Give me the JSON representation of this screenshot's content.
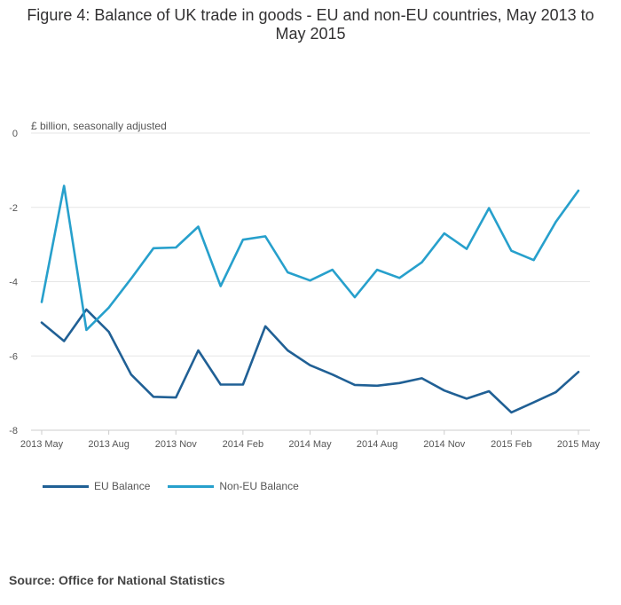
{
  "title": "Figure 4: Balance of UK trade in goods - EU and non-EU countries, May 2013 to May 2015",
  "source": "Source: Office for National Statistics",
  "colors": {
    "eu": "#206095",
    "non_eu": "#27a0cc",
    "grid": "#e6e6e6",
    "axis": "#cccccc"
  },
  "chart_data": {
    "type": "line",
    "ylabel": "£ billion, seasonally adjusted",
    "ylim": [
      -8,
      0
    ],
    "y_ticks": [
      "0",
      "-2",
      "-4",
      "-6",
      "-8"
    ],
    "y_tick_values": [
      0,
      -2,
      -4,
      -6,
      -8
    ],
    "x": [
      "2013 May",
      "2013 Jun",
      "2013 Jul",
      "2013 Aug",
      "2013 Sep",
      "2013 Oct",
      "2013 Nov",
      "2013 Dec",
      "2014 Jan",
      "2014 Feb",
      "2014 Mar",
      "2014 Apr",
      "2014 May",
      "2014 Jun",
      "2014 Jul",
      "2014 Aug",
      "2014 Sep",
      "2014 Oct",
      "2014 Nov",
      "2014 Dec",
      "2015 Jan",
      "2015 Feb",
      "2015 Mar",
      "2015 Apr",
      "2015 May"
    ],
    "x_tick_labels": [
      "2013 May",
      "2013 Aug",
      "2013 Nov",
      "2014 Feb",
      "2014 May",
      "2014 Aug",
      "2014 Nov",
      "2015 Feb",
      "2015 May"
    ],
    "x_tick_indices": [
      0,
      3,
      6,
      9,
      12,
      15,
      18,
      21,
      24
    ],
    "grid": true,
    "legend_position": "bottom-left",
    "series": [
      {
        "name": "EU Balance",
        "color": "#206095",
        "values": [
          -5.1,
          -5.6,
          -4.75,
          -5.35,
          -6.5,
          -7.1,
          -7.12,
          -5.85,
          -6.77,
          -6.77,
          -5.2,
          -5.85,
          -6.25,
          -6.5,
          -6.78,
          -6.8,
          -6.73,
          -6.6,
          -6.93,
          -7.15,
          -6.95,
          -7.52,
          -7.25,
          -6.97,
          -6.43
        ]
      },
      {
        "name": "Non-EU Balance",
        "color": "#27a0cc",
        "values": [
          -4.55,
          -1.42,
          -5.3,
          -4.7,
          -3.92,
          -3.1,
          -3.08,
          -2.52,
          -4.12,
          -2.87,
          -2.78,
          -3.75,
          -3.97,
          -3.68,
          -4.42,
          -3.68,
          -3.9,
          -3.48,
          -2.7,
          -3.12,
          -2.02,
          -3.17,
          -3.42,
          -2.38,
          -1.55
        ]
      }
    ]
  }
}
